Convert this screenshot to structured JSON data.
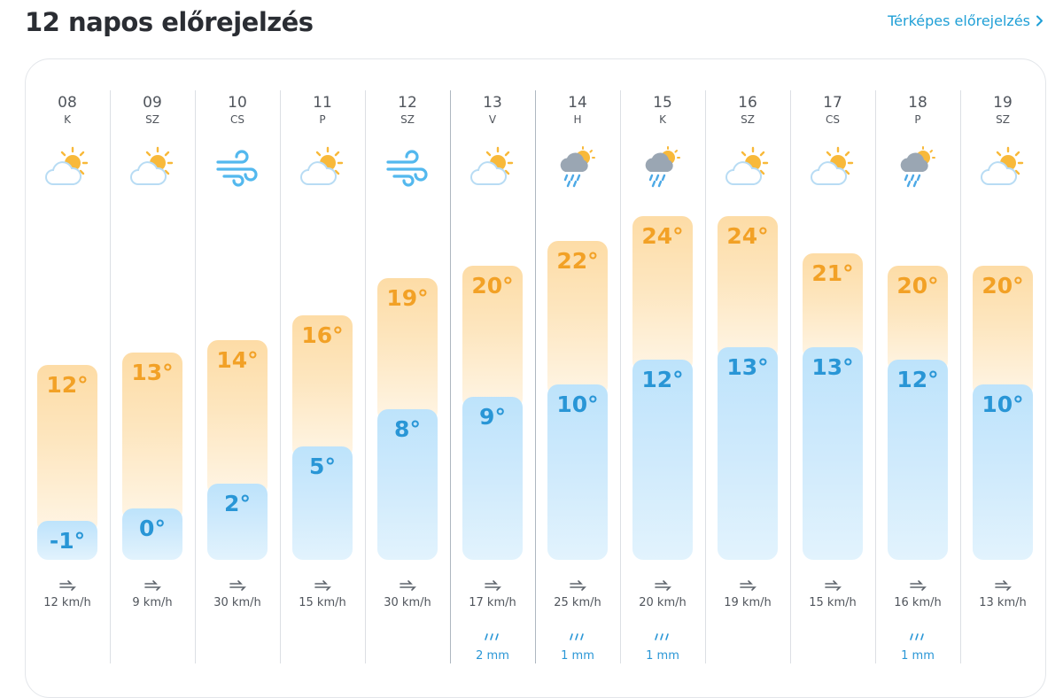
{
  "header": {
    "title": "12 napos előrejelzés",
    "map_link": "Térképes előrejelzés"
  },
  "colors": {
    "accent": "#1f9fd6",
    "high_temp": "#f2a126",
    "low_temp": "#2996d6",
    "high_bar": "#fddca6",
    "low_bar": "#bde3fb"
  },
  "days": [
    {
      "day": "08",
      "dow": "K",
      "icon": "partly-cloudy-icon",
      "high": "12°",
      "low": "-1°",
      "hi_val": 12,
      "lo_val": -1,
      "wind": "12 km/h",
      "rain": ""
    },
    {
      "day": "09",
      "dow": "SZ",
      "icon": "partly-cloudy-icon",
      "high": "13°",
      "low": "0°",
      "hi_val": 13,
      "lo_val": 0,
      "wind": "9 km/h",
      "rain": ""
    },
    {
      "day": "10",
      "dow": "CS",
      "icon": "wind-icon",
      "high": "14°",
      "low": "2°",
      "hi_val": 14,
      "lo_val": 2,
      "wind": "30 km/h",
      "rain": ""
    },
    {
      "day": "11",
      "dow": "P",
      "icon": "partly-cloudy-icon",
      "high": "16°",
      "low": "5°",
      "hi_val": 16,
      "lo_val": 5,
      "wind": "15 km/h",
      "rain": ""
    },
    {
      "day": "12",
      "dow": "SZ",
      "icon": "wind-icon",
      "high": "19°",
      "low": "8°",
      "hi_val": 19,
      "lo_val": 8,
      "wind": "30 km/h",
      "rain": ""
    },
    {
      "day": "13",
      "dow": "V",
      "icon": "partly-cloudy-icon",
      "high": "20°",
      "low": "9°",
      "hi_val": 20,
      "lo_val": 9,
      "wind": "17 km/h",
      "rain": "2 mm"
    },
    {
      "day": "14",
      "dow": "H",
      "icon": "rain-shower-icon",
      "high": "22°",
      "low": "10°",
      "hi_val": 22,
      "lo_val": 10,
      "wind": "25 km/h",
      "rain": "1 mm"
    },
    {
      "day": "15",
      "dow": "K",
      "icon": "rain-shower-icon",
      "high": "24°",
      "low": "12°",
      "hi_val": 24,
      "lo_val": 12,
      "wind": "20 km/h",
      "rain": "1 mm"
    },
    {
      "day": "16",
      "dow": "SZ",
      "icon": "partly-cloudy-icon",
      "high": "24°",
      "low": "13°",
      "hi_val": 24,
      "lo_val": 13,
      "wind": "19 km/h",
      "rain": ""
    },
    {
      "day": "17",
      "dow": "CS",
      "icon": "partly-cloudy-icon",
      "high": "21°",
      "low": "13°",
      "hi_val": 21,
      "lo_val": 13,
      "wind": "15 km/h",
      "rain": ""
    },
    {
      "day": "18",
      "dow": "P",
      "icon": "rain-shower-icon",
      "high": "20°",
      "low": "12°",
      "hi_val": 20,
      "lo_val": 12,
      "wind": "16 km/h",
      "rain": "1 mm"
    },
    {
      "day": "19",
      "dow": "SZ",
      "icon": "partly-cloudy-icon",
      "high": "20°",
      "low": "10°",
      "hi_val": 20,
      "lo_val": 10,
      "wind": "13 km/h",
      "rain": ""
    }
  ]
}
